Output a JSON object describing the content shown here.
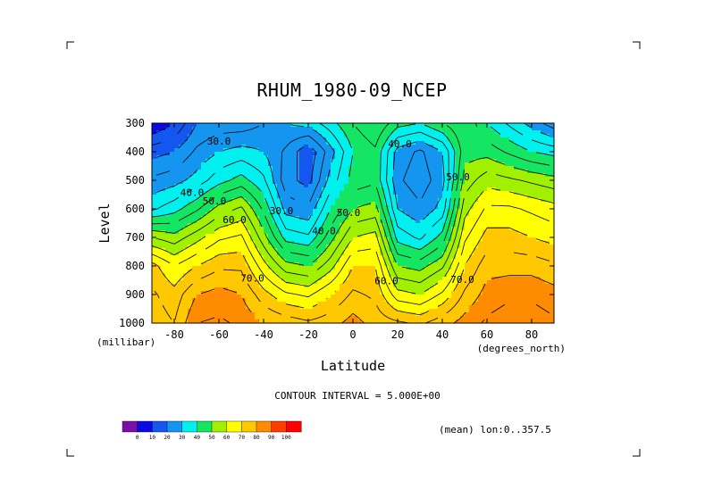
{
  "chart_data": {
    "type": "contour",
    "title": "RHUM_1980-09_NCEP",
    "xlabel": "Latitude",
    "xunits": "(degrees_north)",
    "ylabel": "Level",
    "yunits": "(millibar)",
    "xlim": [
      -90,
      90
    ],
    "ylim": [
      1000,
      300
    ],
    "xticks": [
      "-80",
      "-60",
      "-40",
      "-20",
      "0",
      "20",
      "40",
      "60",
      "80"
    ],
    "xtick_values": [
      -80,
      -60,
      -40,
      -20,
      0,
      20,
      40,
      60,
      80
    ],
    "yticks": [
      "300",
      "400",
      "500",
      "600",
      "700",
      "800",
      "900",
      "1000"
    ],
    "ytick_values": [
      300,
      400,
      500,
      600,
      700,
      800,
      900,
      1000
    ],
    "contour_interval_text": "CONTOUR INTERVAL = 5.000E+00",
    "mean_text": "(mean) lon:0..357.5",
    "colorbar": {
      "labels": [
        "0",
        "10",
        "20",
        "30",
        "40",
        "50",
        "60",
        "70",
        "80",
        "90",
        "100"
      ],
      "colors": [
        "#7a10a8",
        "#0a0ae6",
        "#1456f0",
        "#1496f0",
        "#00f0f0",
        "#14e664",
        "#a0f000",
        "#ffff00",
        "#ffc800",
        "#ff8c00",
        "#ff3c00",
        "#ff0000"
      ]
    },
    "contour_labels": [
      {
        "text": "30.0",
        "lat": -60,
        "lev": 365
      },
      {
        "text": "40.0",
        "lat": -72,
        "lev": 545
      },
      {
        "text": "50.0",
        "lat": -62,
        "lev": 575
      },
      {
        "text": "60.0",
        "lat": -53,
        "lev": 640
      },
      {
        "text": "70.0",
        "lat": -45,
        "lev": 845
      },
      {
        "text": "30.0",
        "lat": -32,
        "lev": 610
      },
      {
        "text": "40.0",
        "lat": -13,
        "lev": 680
      },
      {
        "text": "50.0",
        "lat": -2,
        "lev": 615
      },
      {
        "text": "40.0",
        "lat": 21,
        "lev": 375
      },
      {
        "text": "50.0",
        "lat": 47,
        "lev": 490
      },
      {
        "text": "60.0",
        "lat": 15,
        "lev": 855
      },
      {
        "text": "70.0",
        "lat": 49,
        "lev": 850
      }
    ],
    "series": [
      {
        "name": "",
        "data": [
          [
            -90,
            300,
            5
          ],
          [
            -90,
            400,
            18
          ],
          [
            -90,
            500,
            26
          ],
          [
            -90,
            600,
            34
          ],
          [
            -90,
            700,
            55
          ],
          [
            -90,
            800,
            72
          ],
          [
            -90,
            900,
            76
          ],
          [
            -90,
            1000,
            78
          ],
          [
            -80,
            300,
            10
          ],
          [
            -80,
            400,
            20
          ],
          [
            -80,
            500,
            28
          ],
          [
            -80,
            600,
            38
          ],
          [
            -80,
            700,
            52
          ],
          [
            -80,
            800,
            65
          ],
          [
            -80,
            900,
            72
          ],
          [
            -80,
            1000,
            75
          ],
          [
            -70,
            300,
            20
          ],
          [
            -70,
            400,
            26
          ],
          [
            -70,
            500,
            32
          ],
          [
            -70,
            600,
            44
          ],
          [
            -70,
            700,
            58
          ],
          [
            -70,
            800,
            70
          ],
          [
            -70,
            900,
            80
          ],
          [
            -70,
            1000,
            85
          ],
          [
            -60,
            300,
            22
          ],
          [
            -60,
            400,
            30
          ],
          [
            -60,
            500,
            38
          ],
          [
            -60,
            600,
            52
          ],
          [
            -60,
            700,
            64
          ],
          [
            -60,
            800,
            74
          ],
          [
            -60,
            900,
            82
          ],
          [
            -60,
            1000,
            86
          ],
          [
            -50,
            300,
            22
          ],
          [
            -50,
            400,
            32
          ],
          [
            -50,
            500,
            42
          ],
          [
            -50,
            600,
            56
          ],
          [
            -50,
            700,
            66
          ],
          [
            -50,
            800,
            74
          ],
          [
            -50,
            900,
            80
          ],
          [
            -50,
            1000,
            84
          ],
          [
            -40,
            300,
            25
          ],
          [
            -40,
            400,
            30
          ],
          [
            -40,
            500,
            36
          ],
          [
            -40,
            600,
            44
          ],
          [
            -40,
            700,
            52
          ],
          [
            -40,
            800,
            62
          ],
          [
            -40,
            900,
            72
          ],
          [
            -40,
            1000,
            80
          ],
          [
            -30,
            300,
            30
          ],
          [
            -30,
            400,
            24
          ],
          [
            -30,
            500,
            22
          ],
          [
            -30,
            600,
            28
          ],
          [
            -30,
            700,
            38
          ],
          [
            -30,
            800,
            52
          ],
          [
            -30,
            900,
            66
          ],
          [
            -30,
            1000,
            78
          ],
          [
            -20,
            300,
            32
          ],
          [
            -20,
            400,
            16
          ],
          [
            -20,
            500,
            18
          ],
          [
            -20,
            600,
            26
          ],
          [
            -20,
            700,
            36
          ],
          [
            -20,
            800,
            50
          ],
          [
            -20,
            900,
            64
          ],
          [
            -20,
            1000,
            76
          ],
          [
            -10,
            300,
            38
          ],
          [
            -10,
            400,
            28
          ],
          [
            -10,
            500,
            32
          ],
          [
            -10,
            600,
            40
          ],
          [
            -10,
            700,
            48
          ],
          [
            -10,
            800,
            58
          ],
          [
            -10,
            900,
            70
          ],
          [
            -10,
            1000,
            78
          ],
          [
            0,
            300,
            45
          ],
          [
            0,
            400,
            40
          ],
          [
            0,
            500,
            42
          ],
          [
            0,
            600,
            50
          ],
          [
            0,
            700,
            60
          ],
          [
            0,
            800,
            70
          ],
          [
            0,
            900,
            76
          ],
          [
            0,
            1000,
            82
          ],
          [
            10,
            300,
            50
          ],
          [
            10,
            400,
            44
          ],
          [
            10,
            500,
            44
          ],
          [
            10,
            600,
            52
          ],
          [
            10,
            700,
            62
          ],
          [
            10,
            800,
            70
          ],
          [
            10,
            900,
            74
          ],
          [
            10,
            1000,
            78
          ],
          [
            20,
            300,
            42
          ],
          [
            20,
            400,
            28
          ],
          [
            20,
            500,
            26
          ],
          [
            20,
            600,
            30
          ],
          [
            20,
            700,
            38
          ],
          [
            20,
            800,
            50
          ],
          [
            20,
            900,
            62
          ],
          [
            20,
            1000,
            76
          ],
          [
            30,
            300,
            40
          ],
          [
            30,
            400,
            24
          ],
          [
            30,
            500,
            22
          ],
          [
            30,
            600,
            26
          ],
          [
            30,
            700,
            34
          ],
          [
            30,
            800,
            48
          ],
          [
            30,
            900,
            60
          ],
          [
            30,
            1000,
            74
          ],
          [
            40,
            300,
            45
          ],
          [
            40,
            400,
            30
          ],
          [
            40,
            500,
            28
          ],
          [
            40,
            600,
            32
          ],
          [
            40,
            700,
            42
          ],
          [
            40,
            800,
            54
          ],
          [
            40,
            900,
            66
          ],
          [
            40,
            1000,
            78
          ],
          [
            50,
            300,
            50
          ],
          [
            50,
            400,
            48
          ],
          [
            50,
            500,
            52
          ],
          [
            50,
            600,
            58
          ],
          [
            50,
            700,
            64
          ],
          [
            50,
            800,
            70
          ],
          [
            50,
            900,
            76
          ],
          [
            50,
            1000,
            82
          ],
          [
            60,
            300,
            40
          ],
          [
            60,
            400,
            48
          ],
          [
            60,
            500,
            58
          ],
          [
            60,
            600,
            66
          ],
          [
            60,
            700,
            72
          ],
          [
            60,
            800,
            78
          ],
          [
            60,
            900,
            82
          ],
          [
            60,
            1000,
            86
          ],
          [
            70,
            300,
            34
          ],
          [
            70,
            400,
            44
          ],
          [
            70,
            500,
            56
          ],
          [
            70,
            600,
            66
          ],
          [
            70,
            700,
            72
          ],
          [
            70,
            800,
            78
          ],
          [
            70,
            900,
            84
          ],
          [
            70,
            1000,
            88
          ],
          [
            80,
            300,
            28
          ],
          [
            80,
            400,
            40
          ],
          [
            80,
            500,
            54
          ],
          [
            80,
            600,
            64
          ],
          [
            80,
            700,
            70
          ],
          [
            80,
            800,
            78
          ],
          [
            80,
            900,
            84
          ],
          [
            80,
            1000,
            88
          ],
          [
            90,
            300,
            22
          ],
          [
            90,
            400,
            38
          ],
          [
            90,
            500,
            52
          ],
          [
            90,
            600,
            62
          ],
          [
            90,
            700,
            68
          ],
          [
            90,
            800,
            76
          ],
          [
            90,
            900,
            82
          ],
          [
            90,
            1000,
            86
          ]
        ]
      }
    ]
  }
}
